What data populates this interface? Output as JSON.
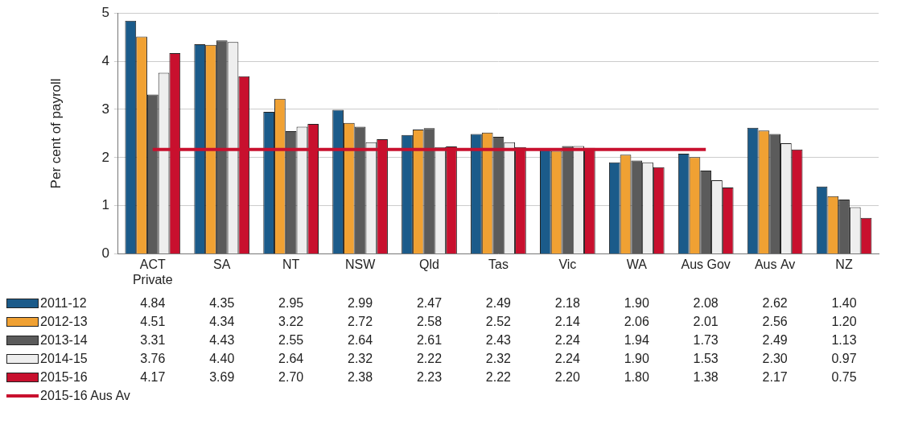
{
  "chart_data": {
    "type": "bar",
    "y_label": "Per cent of payroll",
    "categories": [
      "ACT Private",
      "SA",
      "NT",
      "NSW",
      "Qld",
      "Tas",
      "Vic",
      "WA",
      "Aus Gov",
      "Aus Av",
      "NZ"
    ],
    "series": [
      {
        "name": "2011-12",
        "color": "#1b5b8a",
        "values": [
          4.84,
          4.35,
          2.95,
          2.99,
          2.47,
          2.49,
          2.18,
          1.9,
          2.08,
          2.62,
          1.4
        ],
        "value_labels": [
          "4.84",
          "4.35",
          "2.95",
          "2.99",
          "2.47",
          "2.49",
          "2.18",
          "1.90",
          "2.08",
          "2.62",
          "1.40"
        ]
      },
      {
        "name": "2012-13",
        "color": "#f0a133",
        "values": [
          4.51,
          4.34,
          3.22,
          2.72,
          2.58,
          2.52,
          2.14,
          2.06,
          2.01,
          2.56,
          1.2
        ],
        "value_labels": [
          "4.51",
          "4.34",
          "3.22",
          "2.72",
          "2.58",
          "2.52",
          "2.14",
          "2.06",
          "2.01",
          "2.56",
          "1.20"
        ]
      },
      {
        "name": "2013-14",
        "color": "#5b5b5b",
        "values": [
          3.31,
          4.43,
          2.55,
          2.64,
          2.61,
          2.43,
          2.24,
          1.94,
          1.73,
          2.49,
          1.13
        ],
        "value_labels": [
          "3.31",
          "4.43",
          "2.55",
          "2.64",
          "2.61",
          "2.43",
          "2.24",
          "1.94",
          "1.73",
          "2.49",
          "1.13"
        ]
      },
      {
        "name": "2014-15",
        "color": "#eeeeee",
        "values": [
          3.76,
          4.4,
          2.64,
          2.32,
          2.22,
          2.32,
          2.24,
          1.9,
          1.53,
          2.3,
          0.97
        ],
        "value_labels": [
          "3.76",
          "4.40",
          "2.64",
          "2.32",
          "2.22",
          "2.32",
          "2.24",
          "1.90",
          "1.53",
          "2.30",
          "0.97"
        ]
      },
      {
        "name": "2015-16",
        "color": "#c8102e",
        "values": [
          4.17,
          3.69,
          2.7,
          2.38,
          2.23,
          2.22,
          2.2,
          1.8,
          1.38,
          2.17,
          0.75
        ],
        "value_labels": [
          "4.17",
          "3.69",
          "2.70",
          "2.38",
          "2.23",
          "2.22",
          "2.20",
          "1.80",
          "1.38",
          "2.17",
          "0.75"
        ]
      },
      {
        "name": "2015-16 Aus Av",
        "type": "line",
        "color": "#c8102e",
        "values": [
          2.17,
          2.17,
          2.17,
          2.17,
          2.17,
          2.17,
          2.17,
          2.17,
          2.17,
          null,
          null
        ]
      }
    ],
    "ylim": [
      0,
      5
    ],
    "yticks": [
      0,
      1,
      2,
      3,
      4,
      5
    ],
    "grid": true,
    "legend": "bottom"
  }
}
